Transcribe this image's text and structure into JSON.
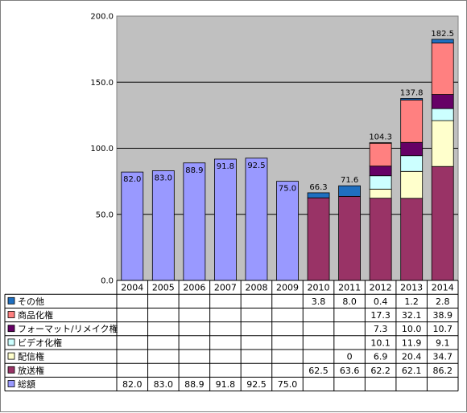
{
  "chart_data": {
    "type": "bar",
    "stacked": true,
    "categories": [
      "2004",
      "2005",
      "2006",
      "2007",
      "2008",
      "2009",
      "2010",
      "2011",
      "2012",
      "2013",
      "2014"
    ],
    "ylim": [
      0,
      200
    ],
    "yticks": [
      "0.0",
      "50.0",
      "100.0",
      "150.0",
      "200.0"
    ],
    "grid": true,
    "legend_placement": "data-table-left",
    "series": [
      {
        "name": "その他",
        "color": "#1f6fc0",
        "values": [
          null,
          null,
          null,
          null,
          null,
          null,
          3.8,
          8.0,
          0.4,
          1.2,
          2.8
        ],
        "cells": [
          "",
          "",
          "",
          "",
          "",
          "",
          "3.8",
          "8.0",
          "0.4",
          "1.2",
          "2.8"
        ]
      },
      {
        "name": "商品化権",
        "color": "#ff8080",
        "values": [
          null,
          null,
          null,
          null,
          null,
          null,
          null,
          null,
          17.3,
          32.1,
          38.9
        ],
        "cells": [
          "",
          "",
          "",
          "",
          "",
          "",
          "",
          "",
          "17.3",
          "32.1",
          "38.9"
        ]
      },
      {
        "name": "フォーマット/リメイク権",
        "color": "#660066",
        "values": [
          null,
          null,
          null,
          null,
          null,
          null,
          null,
          null,
          7.3,
          10.0,
          10.7
        ],
        "cells": [
          "",
          "",
          "",
          "",
          "",
          "",
          "",
          "",
          "7.3",
          "10.0",
          "10.7"
        ]
      },
      {
        "name": "ビデオ化権",
        "color": "#ccffff",
        "values": [
          null,
          null,
          null,
          null,
          null,
          null,
          null,
          null,
          10.1,
          11.9,
          9.1
        ],
        "cells": [
          "",
          "",
          "",
          "",
          "",
          "",
          "",
          "",
          "10.1",
          "11.9",
          "9.1"
        ]
      },
      {
        "name": "配信権",
        "color": "#ffffcc",
        "values": [
          null,
          null,
          null,
          null,
          null,
          null,
          null,
          0,
          6.9,
          20.4,
          34.7
        ],
        "cells": [
          "",
          "",
          "",
          "",
          "",
          "",
          "",
          "0",
          "6.9",
          "20.4",
          "34.7"
        ]
      },
      {
        "name": "放送権",
        "color": "#993366",
        "values": [
          null,
          null,
          null,
          null,
          null,
          null,
          62.5,
          63.6,
          62.2,
          62.1,
          86.2
        ],
        "cells": [
          "",
          "",
          "",
          "",
          "",
          "",
          "62.5",
          "63.6",
          "62.2",
          "62.1",
          "86.2"
        ]
      },
      {
        "name": "総額",
        "color": "#9999ff",
        "values": [
          82.0,
          83.0,
          88.9,
          91.8,
          92.5,
          75.0,
          null,
          null,
          null,
          null,
          null
        ],
        "cells": [
          "82.0",
          "83.0",
          "88.9",
          "91.8",
          "92.5",
          "75.0",
          "",
          "",
          "",
          "",
          ""
        ]
      }
    ],
    "total_labels": [
      "82.0",
      "83.0",
      "88.9",
      "91.8",
      "92.5",
      "75.0",
      "66.3",
      "71.6",
      "104.3",
      "137.8",
      "182.5"
    ],
    "total_label_inside": [
      true,
      true,
      true,
      true,
      true,
      true,
      false,
      false,
      false,
      false,
      false
    ],
    "stack_order": [
      "総額",
      "放送権",
      "配信権",
      "ビデオ化権",
      "フォーマット/リメイク権",
      "商品化権",
      "その他"
    ],
    "plot_background": "#c0c0c0"
  }
}
